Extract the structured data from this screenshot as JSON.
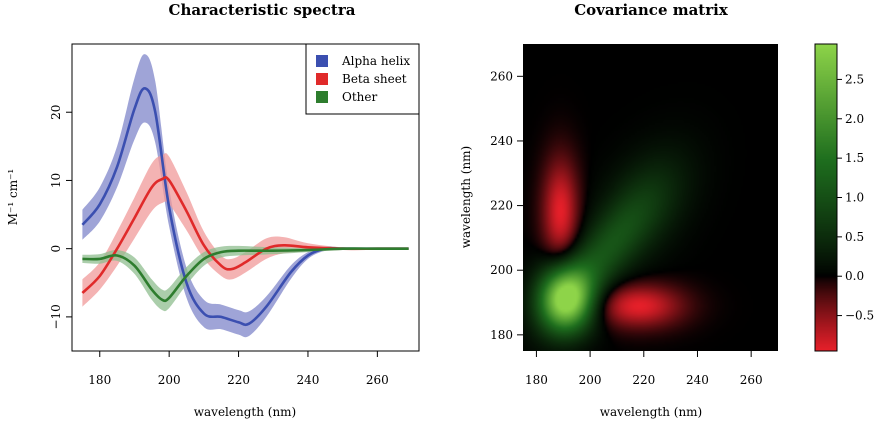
{
  "chart_data": [
    {
      "type": "line",
      "title": "Characteristic spectra",
      "xlabel": "wavelength (nm)",
      "ylabel": "M⁻¹ cm⁻¹",
      "xlim": [
        172,
        272
      ],
      "ylim": [
        -15,
        30
      ],
      "xticks": [
        180,
        200,
        220,
        240,
        260
      ],
      "yticks": [
        -10,
        0,
        10,
        20
      ],
      "legend_position": "top-right",
      "series": [
        {
          "name": "Alpha helix",
          "color": "#3b4fb0",
          "band_color": "#7f86c9",
          "x": [
            175,
            180,
            185,
            190,
            193,
            196,
            200,
            205,
            210,
            215,
            220,
            223,
            228,
            235,
            240,
            245,
            250,
            260,
            269
          ],
          "y": [
            3.5,
            6.5,
            12,
            20.5,
            23.5,
            20,
            6,
            -5,
            -9.5,
            -10,
            -10.8,
            -11,
            -8.5,
            -3.5,
            -1,
            0,
            0,
            0,
            0
          ],
          "band": [
            2.2,
            2.5,
            3,
            4.5,
            5,
            4.5,
            2.8,
            2.2,
            2,
            1.8,
            1.8,
            1.8,
            1.5,
            1,
            0.5,
            0.3,
            0.2,
            0.1,
            0.1
          ]
        },
        {
          "name": "Beta sheet",
          "color": "#e02a2a",
          "band_color": "#f09a9a",
          "x": [
            175,
            180,
            185,
            190,
            195,
            198,
            200,
            205,
            210,
            215,
            218,
            222,
            228,
            233,
            240,
            250,
            260,
            269
          ],
          "y": [
            -6.5,
            -4,
            0,
            4.5,
            9,
            10.2,
            10,
            5.5,
            0.5,
            -2.5,
            -3,
            -2,
            0,
            0.5,
            0.2,
            0,
            0,
            0
          ],
          "band": [
            2,
            2,
            2.5,
            3,
            3.5,
            3.5,
            3.5,
            2.8,
            2,
            1.5,
            1.5,
            1.5,
            1.5,
            1.2,
            0.6,
            0.2,
            0.1,
            0.1
          ]
        },
        {
          "name": "Other",
          "color": "#2e7d2e",
          "band_color": "#8fbe8f",
          "x": [
            175,
            180,
            185,
            190,
            195,
            198,
            200,
            205,
            210,
            215,
            220,
            225,
            230,
            240,
            250,
            260,
            269
          ],
          "y": [
            -1.5,
            -1.5,
            -1,
            -2.5,
            -6,
            -7.5,
            -7.2,
            -4,
            -1.5,
            -0.5,
            -0.3,
            -0.3,
            -0.3,
            -0.2,
            0,
            0,
            0
          ],
          "band": [
            0.6,
            0.7,
            0.8,
            1.2,
            1.5,
            1.5,
            1.5,
            1.3,
            1,
            0.8,
            0.7,
            0.6,
            0.5,
            0.3,
            0.2,
            0.1,
            0.1
          ]
        }
      ]
    },
    {
      "type": "heatmap",
      "title": "Covariance matrix",
      "xlabel": "wavelength (nm)",
      "ylabel": "wavelength (nm)",
      "xlim": [
        175,
        270
      ],
      "ylim": [
        175,
        270
      ],
      "xticks": [
        180,
        200,
        220,
        240,
        260
      ],
      "yticks": [
        180,
        200,
        220,
        240,
        260
      ],
      "color_scale": {
        "min": -0.95,
        "max": 2.95,
        "ticks": [
          2.5,
          2.0,
          1.5,
          1.0,
          0.5,
          0.0,
          -0.5
        ],
        "tick_labels": [
          "2.5",
          "2.0",
          "1.5",
          "1.0",
          "0.5",
          "0.0",
          "−0.5"
        ],
        "colors": {
          "negative": "#e8202a",
          "zero": "#000000",
          "positive": "#8ed449"
        }
      },
      "blobs": [
        {
          "cx": 191,
          "cy": 191,
          "sx": 7,
          "sy": 7,
          "rot": 45,
          "amp": 2.95
        },
        {
          "cx": 203,
          "cy": 203,
          "sx": 16,
          "sy": 6,
          "rot": 45,
          "amp": 0.9
        },
        {
          "cx": 220,
          "cy": 220,
          "sx": 14,
          "sy": 9,
          "rot": 45,
          "amp": 0.55
        },
        {
          "cx": 189,
          "cy": 218,
          "sx": 4.5,
          "sy": 11,
          "rot": 0,
          "amp": -0.95
        },
        {
          "cx": 218,
          "cy": 189,
          "sx": 11,
          "sy": 4.5,
          "rot": 0,
          "amp": -0.95
        }
      ]
    }
  ]
}
